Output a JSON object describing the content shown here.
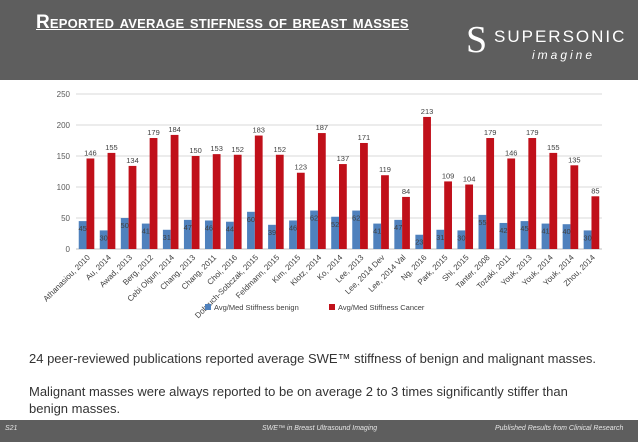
{
  "header": {
    "title": "Reported average stiffness of breast masses",
    "logo_main": "SUPERSONIC",
    "logo_sub": "imagine",
    "logo_letter": "S"
  },
  "colors": {
    "header_bg": "#5e5e5e",
    "benign": "#4f81bd",
    "cancer": "#c0101a",
    "text": "#333333"
  },
  "chart_data": {
    "type": "bar",
    "ylim": [
      0,
      250
    ],
    "yticks": [
      0,
      50,
      100,
      150,
      200,
      250
    ],
    "grid": true,
    "legend_position": "bottom",
    "categories": [
      "Athanasiou, 2010",
      "Au, 2014",
      "Awad, 2013",
      "Berg, 2012",
      "Cebi Olgun, 2014",
      "Chang, 2013",
      "Chang, 2011",
      "Choi, 2016",
      "Dobruch-Sobczak, 2015",
      "Feldmann, 2015",
      "Kim, 2015",
      "Klotz, 2014",
      "Ko, 2014",
      "Lee, 2013",
      "Lee, 2014 Dev",
      "Lee, 2014 Val",
      "Ng, 2016",
      "Park, 2015",
      "Shi, 2015",
      "Tanter, 2008",
      "Tozaki, 2011",
      "Youk, 2013",
      "Youk, 2014",
      "Youk, 2014",
      "Zhou, 2014"
    ],
    "series": [
      {
        "name": "Avg/Med Stiffness benign",
        "color": "#4f81bd",
        "values": [
          45,
          30,
          50,
          41,
          31,
          47,
          46,
          44,
          60,
          39,
          46,
          62,
          52,
          62,
          41,
          47,
          23,
          31,
          30,
          55,
          42,
          45,
          41,
          40,
          30
        ]
      },
      {
        "name": "Avg/Med Stiffness Cancer",
        "color": "#c0101a",
        "values": [
          146,
          155,
          134,
          179,
          184,
          150,
          153,
          152,
          183,
          152,
          123,
          187,
          137,
          171,
          119,
          84,
          213,
          109,
          104,
          179,
          146,
          179,
          155,
          135,
          85
        ]
      }
    ]
  },
  "body": {
    "para1": "24 peer-reviewed publications reported average SWE™ stiffness of benign and malignant masses.",
    "para2": "Malignant masses were always reported to be on average 2 to 3 times significantly stiffer than benign masses."
  },
  "footer": {
    "page": "S21",
    "center": "SWE™ in Breast Ultrasound Imaging",
    "right": "Published Results from Clinical Research"
  }
}
